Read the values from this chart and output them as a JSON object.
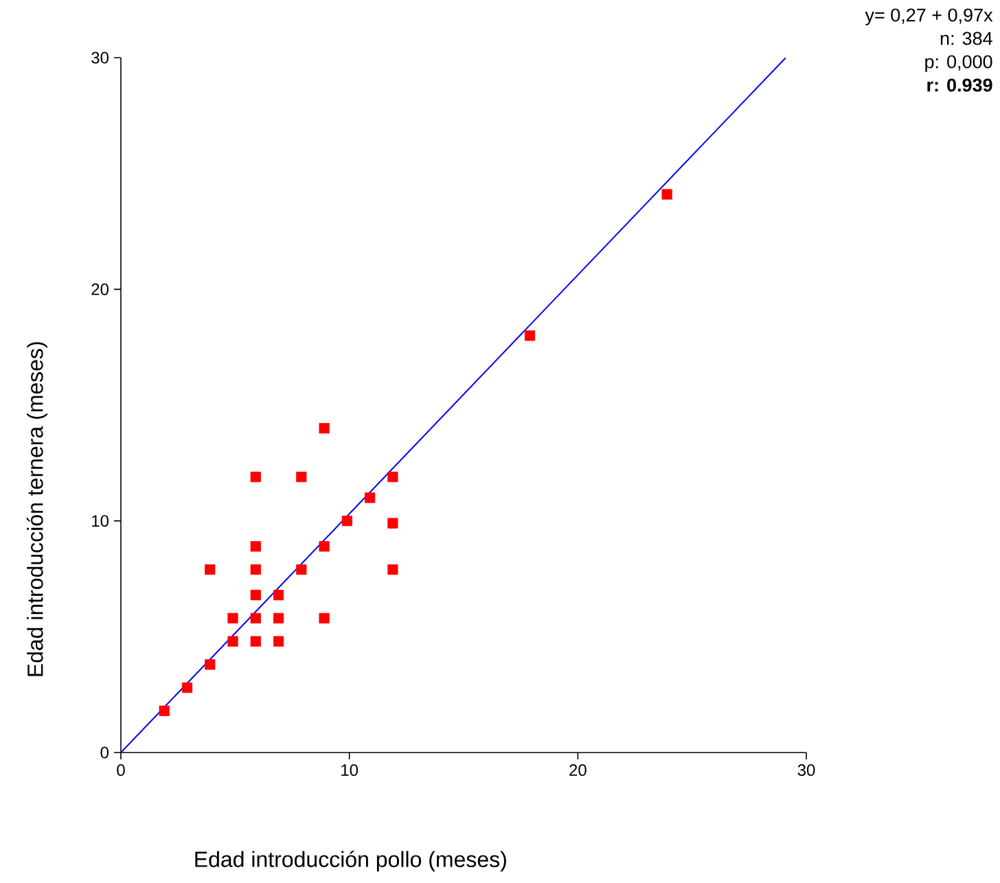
{
  "chart_data": {
    "type": "scatter",
    "xlabel": "Edad introducción pollo (meses)",
    "ylabel": "Edad introducción ternera (meses)",
    "annotations": [
      "y= 0,27 + 0,97x",
      "n: 384",
      "p: 0,000",
      "r: 0.939"
    ],
    "xlim": [
      0,
      30
    ],
    "ylim": [
      0,
      30
    ],
    "xticks": [
      0,
      10,
      20,
      30
    ],
    "yticks": [
      0,
      10,
      20,
      30
    ],
    "marker": "square",
    "series": [
      {
        "color": "#ff0000",
        "x": [
          1.9,
          2.9,
          3.9,
          3.9,
          4.9,
          4.9,
          5.9,
          5.9,
          5.9,
          5.9,
          5.9,
          5.9,
          6.9,
          6.9,
          6.9,
          7.9,
          7.9,
          8.9,
          8.9,
          8.9,
          9.9,
          10.9,
          11.9,
          11.9,
          11.9,
          17.9,
          23.9
        ],
        "values": [
          1.8,
          2.8,
          3.8,
          7.9,
          4.8,
          5.8,
          4.8,
          5.8,
          6.8,
          7.9,
          8.9,
          11.9,
          4.8,
          5.8,
          6.8,
          7.9,
          11.9,
          5.8,
          8.9,
          14,
          10,
          11,
          11.9,
          9.9,
          7.9,
          18,
          24.1
        ]
      },
      {
        "type": "line",
        "color": "#0000ff",
        "marker": "none",
        "line_style": "solid",
        "x": [
          0,
          29.1
        ],
        "values": [
          0,
          30
        ]
      }
    ]
  }
}
